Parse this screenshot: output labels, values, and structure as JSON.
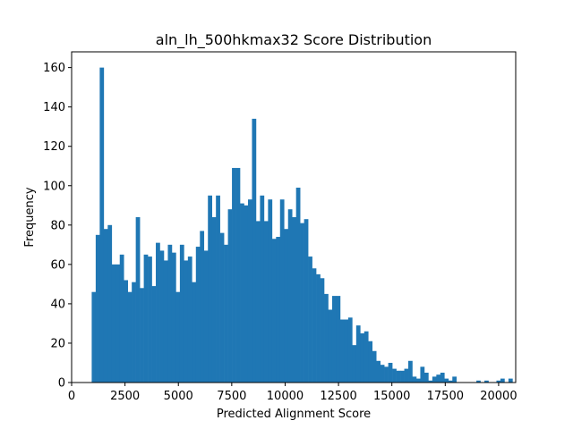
{
  "chart_data": {
    "type": "histogram",
    "title": "aln_lh_500hkmax32 Score Distribution",
    "xlabel": "Predicted Alignment Score",
    "ylabel": "Frequency",
    "xlim": [
      0,
      20800
    ],
    "ylim": [
      0,
      168
    ],
    "xticks": [
      0,
      2500,
      5000,
      7500,
      10000,
      12500,
      15000,
      17500,
      20000
    ],
    "xtick_labels": [
      "0",
      "2500",
      "5000",
      "7500",
      "10000",
      "12500",
      "15000",
      "17500",
      "20000"
    ],
    "yticks": [
      0,
      20,
      40,
      60,
      80,
      100,
      120,
      140,
      160
    ],
    "ytick_labels": [
      "0",
      "20",
      "40",
      "60",
      "80",
      "100",
      "120",
      "140",
      "160"
    ],
    "bar_color": "#1f77b4",
    "grid": false,
    "bin_start": 940,
    "bin_width": 187.7,
    "counts": [
      46,
      75,
      160,
      78,
      80,
      60,
      60,
      65,
      52,
      46,
      51,
      84,
      48,
      65,
      64,
      49,
      71,
      67,
      62,
      70,
      66,
      46,
      70,
      62,
      64,
      51,
      69,
      77,
      67,
      95,
      84,
      95,
      76,
      70,
      88,
      109,
      109,
      91,
      90,
      93,
      134,
      82,
      95,
      82,
      93,
      73,
      74,
      93,
      78,
      88,
      84,
      99,
      81,
      83,
      64,
      58,
      55,
      53,
      45,
      37,
      44,
      44,
      32,
      32,
      33,
      19,
      29,
      25,
      26,
      21,
      16,
      11,
      9,
      8,
      10,
      7,
      6,
      6,
      7,
      11,
      3,
      2,
      8,
      5,
      1,
      3,
      4,
      5,
      2,
      1,
      3,
      0,
      0,
      0,
      0,
      0,
      1,
      0,
      1,
      0,
      0,
      1,
      2,
      0,
      2,
      0
    ]
  }
}
